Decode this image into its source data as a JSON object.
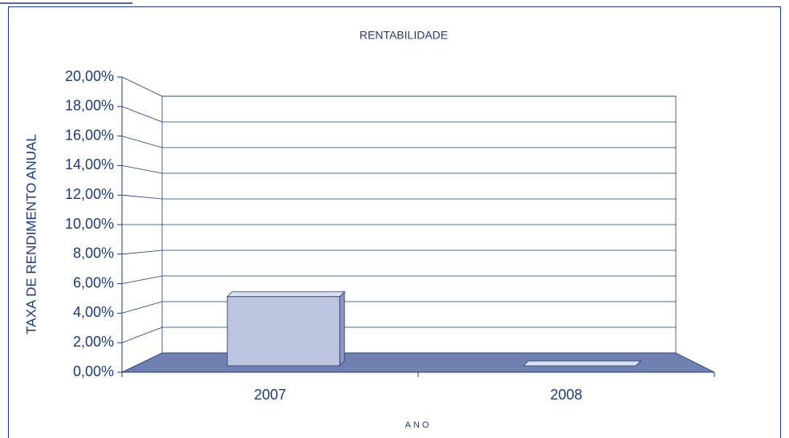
{
  "chart_data": {
    "type": "bar3d",
    "title": "RENTABILIDADE",
    "x_label": "ANO",
    "y_label": "TAXA DE RENDIMENTO ANUAL",
    "categories": [
      "2007",
      "2008"
    ],
    "values": [
      4.9,
      0
    ],
    "color": "#bcc4df",
    "floor_color": "#7081b1",
    "ylim": [
      0,
      20
    ],
    "yticks": [
      {
        "value": 0,
        "label": "0,00%"
      },
      {
        "value": 2,
        "label": "2,00%"
      },
      {
        "value": 4,
        "label": "4,00%"
      },
      {
        "value": 6,
        "label": "6,00%"
      },
      {
        "value": 8,
        "label": "8,00%"
      },
      {
        "value": 10,
        "label": "10,00%"
      },
      {
        "value": 12,
        "label": "12,00%"
      },
      {
        "value": 14,
        "label": "14,00%"
      },
      {
        "value": 16,
        "label": "16,00%"
      },
      {
        "value": 18,
        "label": "18,00%"
      },
      {
        "value": 20,
        "label": "20,00%"
      }
    ],
    "grid": true
  }
}
